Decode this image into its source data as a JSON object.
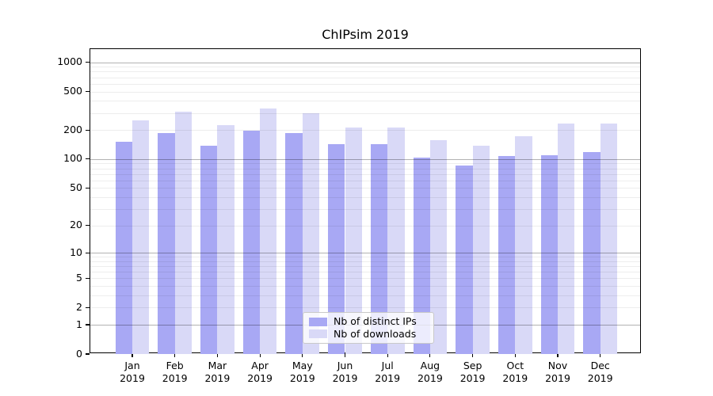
{
  "title": "ChIPsim 2019",
  "colors": {
    "distinct_ips_bar": "#a8a8f4",
    "downloads_bar": "#d9d9f7",
    "axis": "#000000",
    "grid_major": "#b3b3b3",
    "grid_minor": "#ebebeb",
    "background": "#ffffff"
  },
  "legend": {
    "items": [
      {
        "label": "Nb of distinct IPs",
        "color": "#a8a8f4"
      },
      {
        "label": "Nb of downloads",
        "color": "#d9d9f7"
      }
    ]
  },
  "chart_data": {
    "type": "bar",
    "title": "ChIPsim 2019",
    "categories": [
      "Jan 2019",
      "Feb 2019",
      "Mar 2019",
      "Apr 2019",
      "May 2019",
      "Jun 2019",
      "Jul 2019",
      "Aug 2019",
      "Sep 2019",
      "Oct 2019",
      "Nov 2019",
      "Dec 2019"
    ],
    "series": [
      {
        "name": "Nb of distinct IPs",
        "color": "#a8a8f4",
        "values": [
          152,
          188,
          139,
          196,
          187,
          144,
          144,
          103,
          85,
          108,
          109,
          119
        ]
      },
      {
        "name": "Nb of downloads",
        "color": "#d9d9f7",
        "values": [
          250,
          308,
          225,
          334,
          296,
          213,
          213,
          156,
          138,
          173,
          235,
          232
        ]
      }
    ],
    "xlabel": "",
    "ylabel": "",
    "yscale": "log1p",
    "yticks": [
      1000,
      500,
      200,
      100,
      50,
      20,
      10,
      5,
      2,
      1,
      0
    ],
    "ylim": [
      0,
      1360
    ],
    "grid": true,
    "grid_minor": true,
    "legend_position": "inside-bottom-center"
  }
}
